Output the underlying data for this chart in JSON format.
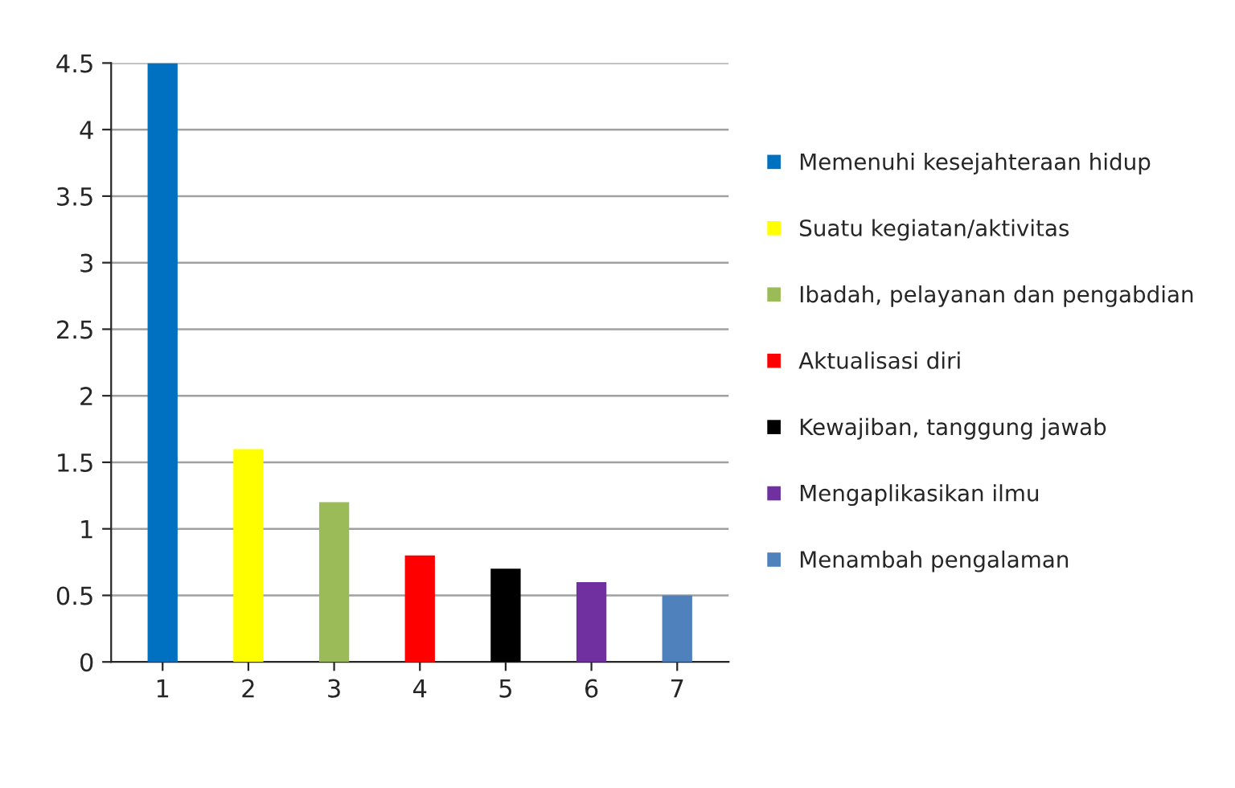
{
  "chart_data": {
    "type": "bar",
    "categories": [
      "1",
      "2",
      "3",
      "4",
      "5",
      "6",
      "7"
    ],
    "series": [
      {
        "name": "Memenuhi kesejahteraan hidup",
        "color": "#0070c0",
        "values": [
          4.5,
          null,
          null,
          null,
          null,
          null,
          null
        ]
      },
      {
        "name": "Suatu kegiatan/aktivitas",
        "color": "#ffff00",
        "values": [
          null,
          1.6,
          null,
          null,
          null,
          null,
          null
        ]
      },
      {
        "name": "Ibadah, pelayanan dan pengabdian",
        "color": "#9bbb59",
        "values": [
          null,
          null,
          1.2,
          null,
          null,
          null,
          null
        ]
      },
      {
        "name": "Aktualisasi diri",
        "color": "#ff0000",
        "values": [
          null,
          null,
          null,
          0.8,
          null,
          null,
          null
        ]
      },
      {
        "name": "Kewajiban, tanggung jawab",
        "color": "#000000",
        "values": [
          null,
          null,
          null,
          null,
          0.7,
          null,
          null
        ]
      },
      {
        "name": "Mengaplikasikan ilmu",
        "color": "#7030a0",
        "values": [
          null,
          null,
          null,
          null,
          null,
          0.6,
          null
        ]
      },
      {
        "name": "Menambah pengalaman",
        "color": "#4f81bd",
        "values": [
          null,
          null,
          null,
          null,
          null,
          null,
          0.5
        ]
      }
    ],
    "ylim": [
      0,
      4.5
    ],
    "yticks": [
      0,
      0.5,
      1,
      1.5,
      2,
      2.5,
      3,
      3.5,
      4,
      4.5
    ],
    "grid": "y",
    "legend": "right"
  }
}
